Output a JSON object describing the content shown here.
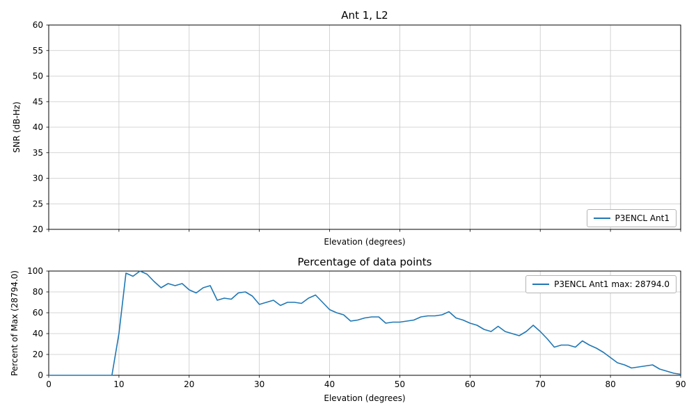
{
  "figure": {
    "background": "#ffffff",
    "line_color": "#1f77b4",
    "grid_color": "#c8c8c8",
    "axis_color": "#000000"
  },
  "chart_data": [
    {
      "type": "line",
      "title": "Ant 1, L2",
      "xlabel": "Elevation (degrees)",
      "ylabel": "SNR (dB-Hz)",
      "xlim": [
        0,
        90
      ],
      "ylim": [
        20,
        60
      ],
      "xticks": [
        0,
        10,
        20,
        30,
        40,
        50,
        60,
        70,
        80,
        90
      ],
      "show_xticklabels": false,
      "yticks": [
        20,
        25,
        30,
        35,
        40,
        45,
        50,
        55,
        60
      ],
      "grid": true,
      "legend": {
        "position": "lower right",
        "label": "P3ENCL Ant1"
      },
      "series": []
    },
    {
      "type": "line",
      "title": "Percentage of data points",
      "xlabel": "Elevation (degrees)",
      "ylabel": "Percent of Max (28794.0)",
      "xlim": [
        0,
        90
      ],
      "ylim": [
        0,
        100
      ],
      "xticks": [
        0,
        10,
        20,
        30,
        40,
        50,
        60,
        70,
        80,
        90
      ],
      "show_xticklabels": true,
      "yticks": [
        0,
        20,
        40,
        60,
        80,
        100
      ],
      "grid": true,
      "legend": {
        "position": "upper right",
        "label": "P3ENCL Ant1 max: 28794.0"
      },
      "max_value": 28794.0,
      "series": [
        {
          "name": "P3ENCL Ant1",
          "x": [
            0,
            1,
            2,
            3,
            4,
            5,
            6,
            7,
            8,
            9,
            10,
            11,
            12,
            13,
            14,
            15,
            16,
            17,
            18,
            19,
            20,
            21,
            22,
            23,
            24,
            25,
            26,
            27,
            28,
            29,
            30,
            31,
            32,
            33,
            34,
            35,
            36,
            37,
            38,
            39,
            40,
            41,
            42,
            43,
            44,
            45,
            46,
            47,
            48,
            49,
            50,
            51,
            52,
            53,
            54,
            55,
            56,
            57,
            58,
            59,
            60,
            61,
            62,
            63,
            64,
            65,
            66,
            67,
            68,
            69,
            70,
            71,
            72,
            73,
            74,
            75,
            76,
            77,
            78,
            79,
            80,
            81,
            82,
            83,
            84,
            85,
            86,
            87,
            88,
            89,
            90
          ],
          "y": [
            0,
            0,
            0,
            0,
            0,
            0,
            0,
            0,
            0,
            0,
            40,
            98,
            95,
            100,
            97,
            90,
            84,
            88,
            86,
            88,
            82,
            79,
            84,
            86,
            72,
            74,
            73,
            79,
            80,
            76,
            68,
            70,
            72,
            67,
            70,
            70,
            69,
            74,
            77,
            70,
            63,
            60,
            58,
            52,
            53,
            55,
            56,
            56,
            50,
            51,
            51,
            52,
            53,
            56,
            57,
            57,
            58,
            61,
            55,
            53,
            50,
            48,
            44,
            42,
            47,
            42,
            40,
            38,
            42,
            48,
            42,
            35,
            27,
            29,
            29,
            27,
            33,
            29,
            26,
            22,
            17,
            12,
            10,
            7,
            8,
            9,
            10,
            6,
            4,
            2,
            1
          ]
        }
      ]
    }
  ]
}
